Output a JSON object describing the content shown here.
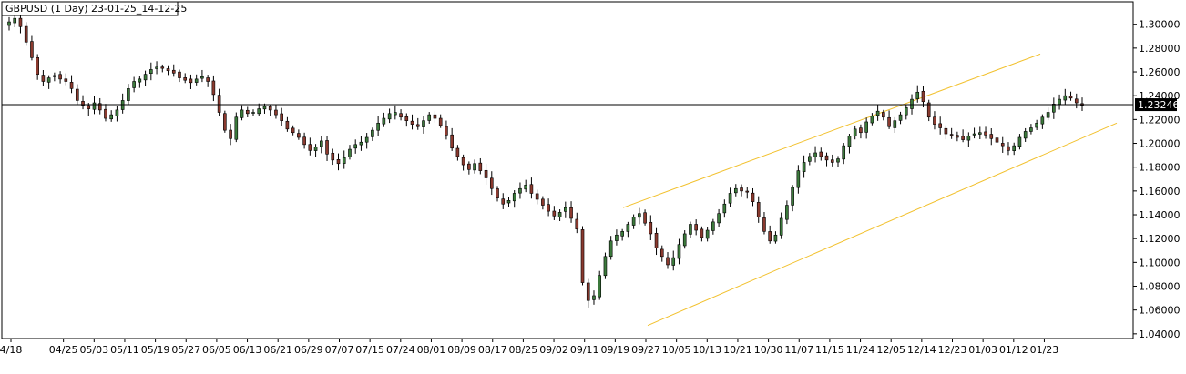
{
  "chart_data": {
    "type": "candlestick",
    "title": "GBPUSD (1 Day) 23-01-25_14-12-25",
    "ylim": [
      1.035,
      1.31
    ],
    "yticks": [
      "1.30000",
      "1.28000",
      "1.26000",
      "1.24000",
      "1.22000",
      "1.20000",
      "1.18000",
      "1.16000",
      "1.14000",
      "1.12000",
      "1.10000",
      "1.08000",
      "1.06000",
      "1.04000"
    ],
    "xticks": [
      "4/18",
      "04/25",
      "05/03",
      "05/11",
      "05/19",
      "05/27",
      "06/05",
      "06/13",
      "06/21",
      "06/29",
      "07/07",
      "07/15",
      "07/24",
      "08/01",
      "08/09",
      "08/17",
      "08/25",
      "09/02",
      "09/11",
      "09/19",
      "09/27",
      "10/05",
      "10/13",
      "10/21",
      "10/30",
      "11/07",
      "11/15",
      "11/24",
      "12/05",
      "12/14",
      "12/23",
      "01/03",
      "01/12",
      "01/23"
    ],
    "current_price": "1.23246",
    "current_price_value": 1.23246,
    "colors": {
      "bull": "#3c7a3c",
      "bear": "#8b3a2f",
      "wick": "#000000",
      "channel": "#f2c12e",
      "grid": "#000000"
    },
    "channel": {
      "upper": [
        [
          "09/19",
          1.146
        ],
        [
          "01/23+",
          1.275
        ]
      ],
      "lower": [
        [
          "09/27",
          1.047
        ],
        [
          "01/23+",
          1.217
        ]
      ]
    },
    "path_close": [
      1.302,
      1.305,
      1.298,
      1.285,
      1.272,
      1.258,
      1.252,
      1.255,
      1.257,
      1.254,
      1.252,
      1.246,
      1.236,
      1.232,
      1.229,
      1.234,
      1.228,
      1.221,
      1.224,
      1.228,
      1.236,
      1.246,
      1.252,
      1.254,
      1.258,
      1.262,
      1.264,
      1.263,
      1.261,
      1.259,
      1.255,
      1.253,
      1.251,
      1.254,
      1.256,
      1.252,
      1.241,
      1.226,
      1.211,
      1.204,
      1.222,
      1.228,
      1.225,
      1.226,
      1.229,
      1.231,
      1.228,
      1.224,
      1.219,
      1.212,
      1.209,
      1.205,
      1.199,
      1.194,
      1.197,
      1.202,
      1.191,
      1.186,
      1.183,
      1.188,
      1.195,
      1.199,
      1.201,
      1.205,
      1.211,
      1.217,
      1.221,
      1.225,
      1.226,
      1.222,
      1.219,
      1.216,
      1.214,
      1.219,
      1.224,
      1.221,
      1.215,
      1.207,
      1.196,
      1.189,
      1.182,
      1.178,
      1.183,
      1.177,
      1.171,
      1.162,
      1.154,
      1.149,
      1.152,
      1.158,
      1.162,
      1.165,
      1.158,
      1.153,
      1.148,
      1.143,
      1.139,
      1.142,
      1.146,
      1.137,
      1.128,
      1.083,
      1.068,
      1.072,
      1.089,
      1.105,
      1.118,
      1.123,
      1.126,
      1.132,
      1.138,
      1.141,
      1.133,
      1.124,
      1.112,
      1.105,
      1.098,
      1.104,
      1.115,
      1.124,
      1.132,
      1.127,
      1.121,
      1.127,
      1.134,
      1.141,
      1.149,
      1.158,
      1.162,
      1.16,
      1.159,
      1.151,
      1.138,
      1.126,
      1.118,
      1.123,
      1.137,
      1.148,
      1.163,
      1.177,
      1.184,
      1.189,
      1.192,
      1.189,
      1.186,
      1.184,
      1.187,
      1.198,
      1.206,
      1.212,
      1.209,
      1.218,
      1.223,
      1.227,
      1.222,
      1.214,
      1.219,
      1.224,
      1.23,
      1.237,
      1.243,
      1.235,
      1.222,
      1.216,
      1.213,
      1.208,
      1.207,
      1.205,
      1.203,
      1.206,
      1.208,
      1.209,
      1.207,
      1.204,
      1.201,
      1.198,
      1.194,
      1.198,
      1.205,
      1.21,
      1.213,
      1.217,
      1.222,
      1.226,
      1.233,
      1.237,
      1.24,
      1.238,
      1.234,
      1.232
    ]
  }
}
